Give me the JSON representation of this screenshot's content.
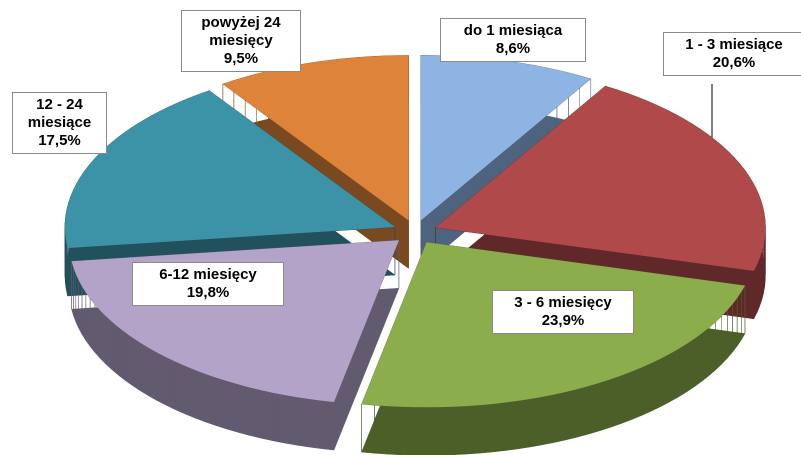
{
  "chart_data": {
    "type": "pie",
    "categories": [
      "do 1 miesiąca",
      "1 - 3 miesiące",
      "3 - 6 miesięcy",
      "6-12 miesięcy",
      "12 - 24 miesiące",
      "powyżej 24 miesięcy"
    ],
    "values": [
      8.6,
      20.6,
      23.9,
      19.8,
      17.5,
      9.5
    ],
    "value_labels": [
      "8,6%",
      "20,6%",
      "23,9%",
      "19,8%",
      "17,5%",
      "9,5%"
    ],
    "colors": [
      "#8eb4e3",
      "#b0494a",
      "#8bad4b",
      "#b3a3c8",
      "#3c93a8",
      "#dd843a"
    ]
  }
}
